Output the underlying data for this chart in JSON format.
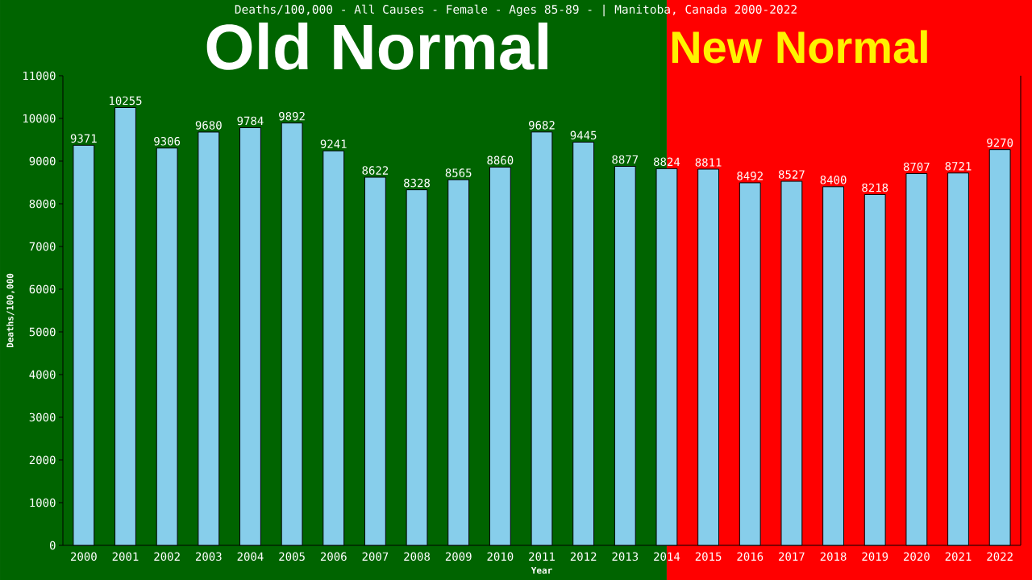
{
  "chart_data": {
    "type": "bar",
    "title": "Deaths/100,000 - All Causes - Female - Ages 85-89 -  | Manitoba, Canada 2000-2022",
    "xlabel": "Year",
    "ylabel": "Deaths/100,000",
    "categories": [
      "2000",
      "2001",
      "2002",
      "2003",
      "2004",
      "2005",
      "2006",
      "2007",
      "2008",
      "2009",
      "2010",
      "2011",
      "2012",
      "2013",
      "2014",
      "2015",
      "2016",
      "2017",
      "2018",
      "2019",
      "2020",
      "2021",
      "2022"
    ],
    "values": [
      9371,
      10255,
      9306,
      9680,
      9784,
      9892,
      9241,
      8622,
      8328,
      8565,
      8860,
      9682,
      9445,
      8877,
      8824,
      8811,
      8492,
      8527,
      8400,
      8218,
      8707,
      8721,
      9270
    ],
    "color": "#87ceeb",
    "ylim": [
      0,
      11000
    ],
    "yticks": [
      0,
      1000,
      2000,
      3000,
      4000,
      5000,
      6000,
      7000,
      8000,
      9000,
      10000,
      11000
    ],
    "data_labels": true,
    "bands": [
      {
        "axis": "x",
        "from": "2000",
        "to": "2014",
        "label": "Old Normal",
        "color": "#006400"
      },
      {
        "axis": "x",
        "from": "2014",
        "to": "2022",
        "label": "New Normal",
        "color": "#ff0000"
      }
    ]
  }
}
